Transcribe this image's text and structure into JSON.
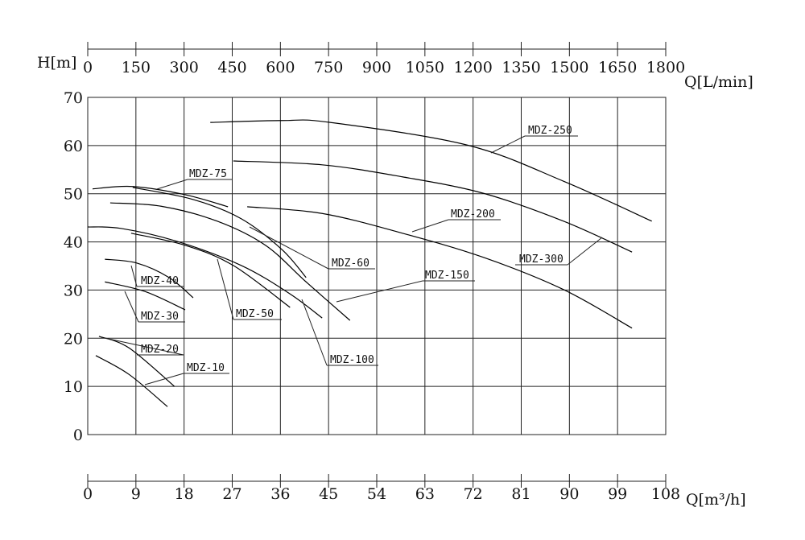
{
  "chart_data": {
    "type": "line",
    "y_label": "H[m]",
    "x_label": "Q[m³/h]",
    "x2_label": "Q[L/min]",
    "xlim": [
      0,
      108
    ],
    "xticks": [
      0,
      9,
      18,
      27,
      36,
      45,
      54,
      63,
      72,
      81,
      90,
      99,
      108
    ],
    "x2lim": [
      0,
      1800
    ],
    "x2ticks": [
      0,
      150,
      300,
      450,
      600,
      750,
      900,
      1050,
      1200,
      1350,
      1500,
      1650,
      1800
    ],
    "ylim": [
      0,
      70
    ],
    "yticks": [
      0,
      10,
      20,
      30,
      40,
      50,
      60,
      70
    ],
    "grid": true,
    "series": [
      {
        "name": "MDZ-250",
        "color": "#000000",
        "x": [
          22.9,
          36.3,
          45.3,
          70.9,
          88.9,
          105.4
        ],
        "values": [
          64.8,
          65.2,
          64.8,
          60.1,
          52.6,
          44.3
        ]
      },
      {
        "name": "MDZ-300",
        "color": "#000000",
        "x": [
          27.2,
          43.8,
          58.8,
          73.9,
          88.9,
          101.7
        ],
        "values": [
          56.8,
          56,
          53.5,
          50.1,
          44.3,
          37.9
        ]
      },
      {
        "name": "MDZ-200",
        "color": "#000000",
        "x": [
          29.8,
          43.8,
          58.8,
          73.9,
          88.9,
          101.7
        ],
        "values": [
          47.3,
          45.9,
          41.8,
          36.8,
          30.1,
          22.1
        ]
      },
      {
        "name": "MDZ-150",
        "color": "#000000",
        "x": [
          4.2,
          13.7,
          24.2,
          33.2,
          40.8,
          49
        ],
        "values": [
          48.1,
          47.4,
          44.3,
          39.3,
          31.7,
          23.7
        ]
      },
      {
        "name": "MDZ-100",
        "color": "#000000",
        "x": [
          0,
          6.2,
          16.7,
          28.7,
          37.8,
          43.8
        ],
        "values": [
          43.1,
          42.8,
          40.1,
          35.1,
          29.2,
          24.2
        ]
      },
      {
        "name": "MDZ-75",
        "color": "#000000",
        "x": [
          0.9,
          8.4,
          18.2,
          26.2
        ],
        "values": [
          51,
          51.5,
          49.8,
          47.3
        ]
      },
      {
        "name": "MDZ-60",
        "color": "#000000",
        "x": [
          8.4,
          19.7,
          28.7,
          36.3,
          40.8
        ],
        "values": [
          51.3,
          48.8,
          44.8,
          38.4,
          32.6
        ]
      },
      {
        "name": "MDZ-50",
        "color": "#000000",
        "x": [
          8.1,
          18.2,
          27.2,
          37.8
        ],
        "values": [
          41.8,
          39.3,
          35.1,
          26.4
        ]
      },
      {
        "name": "MDZ-40",
        "color": "#000000",
        "x": [
          3.2,
          9.2,
          15.2,
          19.7
        ],
        "values": [
          36.4,
          35.6,
          32.6,
          28.4
        ]
      },
      {
        "name": "MDZ-30",
        "color": "#000000",
        "x": [
          3.2,
          10.7,
          18.2
        ],
        "values": [
          31.7,
          29.7,
          25.9
        ]
      },
      {
        "name": "MDZ-20",
        "color": "#000000",
        "x": [
          2.1,
          7.7,
          16.2
        ],
        "values": [
          20.4,
          18,
          10
        ]
      },
      {
        "name": "MDZ-10",
        "color": "#000000",
        "x": [
          1.5,
          7.7,
          14.9
        ],
        "values": [
          16.4,
          12.5,
          5.8
        ]
      }
    ]
  }
}
